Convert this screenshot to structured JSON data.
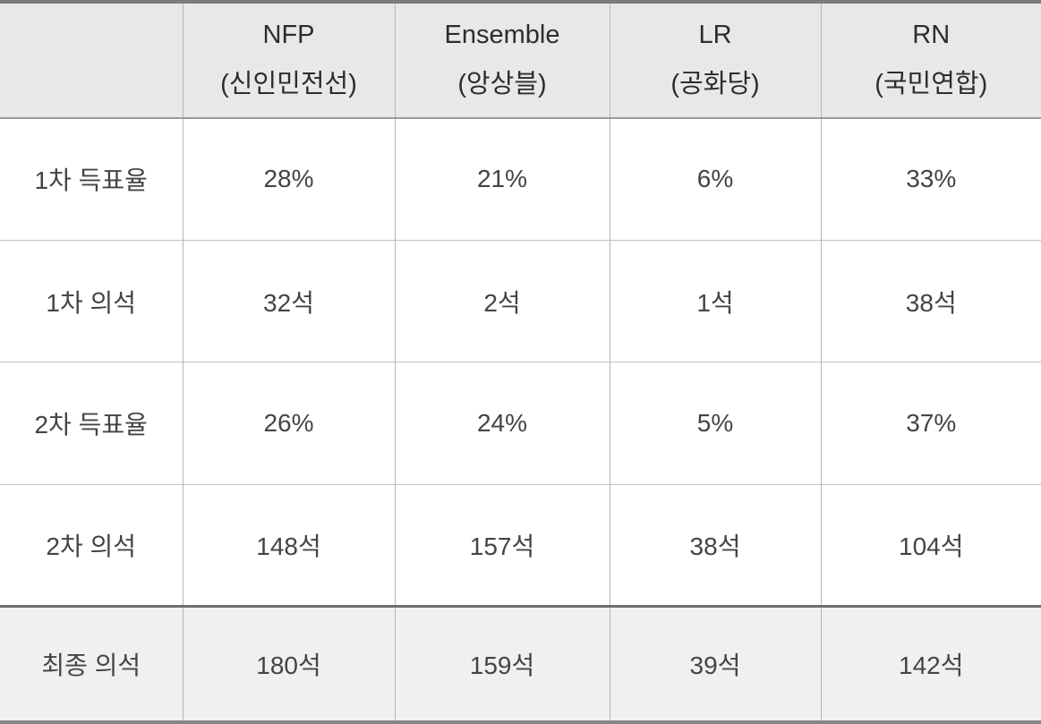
{
  "table": {
    "columns": [
      {
        "abbr": "",
        "full": ""
      },
      {
        "abbr": "NFP",
        "full": "(신인민전선)"
      },
      {
        "abbr": "Ensemble",
        "full": "(앙상블)"
      },
      {
        "abbr": "LR",
        "full": "(공화당)"
      },
      {
        "abbr": "RN",
        "full": "(국민연합)"
      }
    ],
    "rows": [
      {
        "label": "1차 득표율",
        "values": [
          "28%",
          "21%",
          "6%",
          "33%"
        ]
      },
      {
        "label": "1차 의석",
        "values": [
          "32석",
          "2석",
          "1석",
          "38석"
        ]
      },
      {
        "label": "2차 득표율",
        "values": [
          "26%",
          "24%",
          "5%",
          "37%"
        ]
      },
      {
        "label": "2차 의석",
        "values": [
          "148석",
          "157석",
          "38석",
          "104석"
        ]
      },
      {
        "label": "최종 의석",
        "values": [
          "180석",
          "159석",
          "39석",
          "142석"
        ]
      }
    ]
  },
  "colors": {
    "header_bg": "#e8e8e8",
    "final_row_bg": "#f0f0f0",
    "thick_border": "#7c7c7c",
    "thin_border": "#bdbdbd",
    "text": "#3d3d3d"
  }
}
